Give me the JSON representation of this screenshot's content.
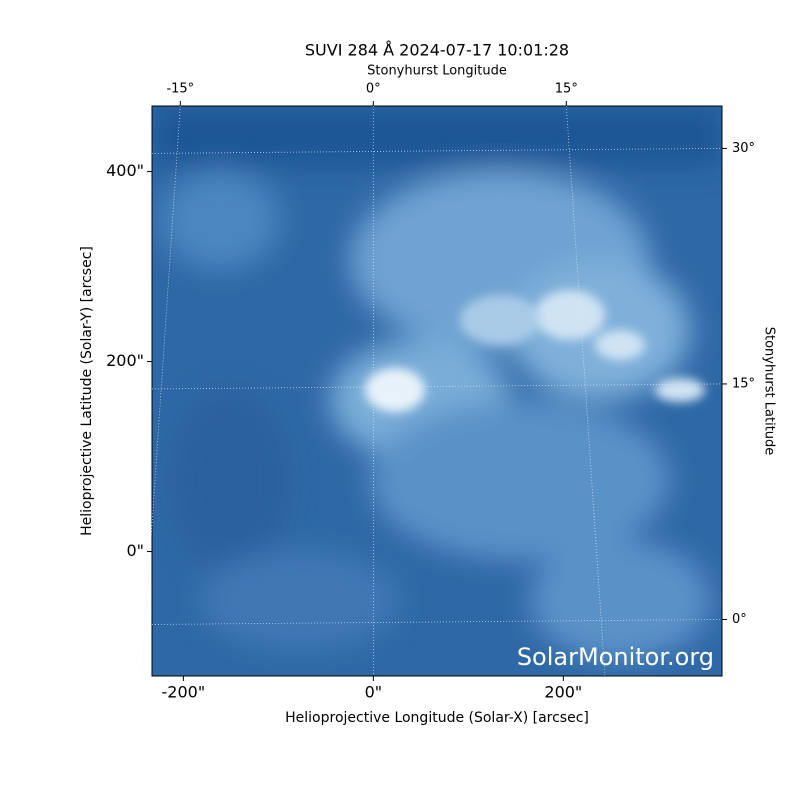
{
  "chart_data": {
    "type": "image",
    "title": "SUVI 284 Å 2024-07-17 10:01:28",
    "x_label": "Helioprojective Longitude (Solar-X) [arcsec]",
    "y_label": "Helioprojective Latitude (Solar-Y) [arcsec]",
    "x2_label": "Stonyhurst Longitude",
    "y2_label": "Stonyhurst Latitude",
    "watermark": "SolarMonitor.org",
    "xlim": [
      -233,
      367
    ],
    "ylim": [
      -131,
      469
    ],
    "xticks": [
      {
        "value": -200,
        "label": "-200\""
      },
      {
        "value": 0,
        "label": "0\""
      },
      {
        "value": 200,
        "label": "200\""
      }
    ],
    "yticks": [
      {
        "value": 0,
        "label": "0\""
      },
      {
        "value": 200,
        "label": "200\""
      },
      {
        "value": 400,
        "label": "400\""
      }
    ],
    "x2lim": [
      -17.2,
      27.1
    ],
    "y2lim": [
      -3.6,
      32.7
    ],
    "x2ticks": [
      {
        "value": -15,
        "label": "-15°"
      },
      {
        "value": 0,
        "label": "0°"
      },
      {
        "value": 15,
        "label": "15°"
      }
    ],
    "y2ticks": [
      {
        "value": 0,
        "label": "0°"
      },
      {
        "value": 15,
        "label": "15°"
      },
      {
        "value": 30,
        "label": "30°"
      }
    ],
    "grid": true
  }
}
